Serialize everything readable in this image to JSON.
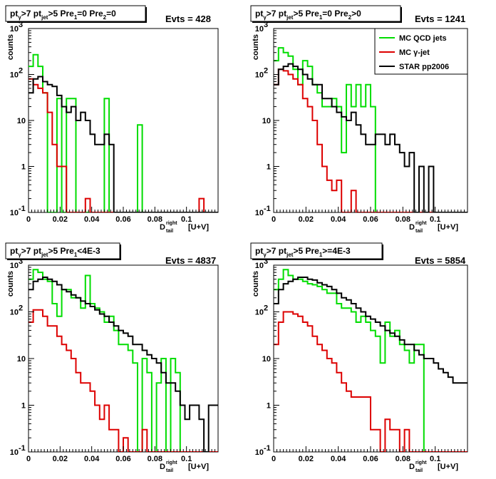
{
  "panels": [
    {
      "title": [
        "pt",
        "γ",
        ">7  pt",
        "jet",
        ">5 Pre",
        "1",
        "=0 Pre",
        "2",
        "=0"
      ],
      "evts": "Evts = 428",
      "legend": null
    },
    {
      "title": [
        "pt",
        "γ",
        ">7  pt",
        "jet",
        ">5 Pre",
        "1",
        "=0 Pre",
        "2",
        ">0"
      ],
      "evts": "Evts = 1241",
      "legend": [
        "MC QCD jets",
        "MC γ-jet",
        "STAR pp2006"
      ]
    },
    {
      "title": [
        "pt",
        "γ",
        ">7  pt",
        "jet",
        ">5 Pre",
        "1",
        "<4E-3"
      ],
      "evts": "Evts = 4837",
      "legend": null
    },
    {
      "title": [
        "pt",
        "γ",
        ">7  pt",
        "jet",
        ">5 Pre",
        "1",
        ">=4E-3"
      ],
      "evts": "Evts = 5854",
      "legend": null
    }
  ],
  "colors": {
    "qcd": "#00dd00",
    "gamma": "#dd0000",
    "star": "#000000"
  },
  "chart_data": [
    {
      "type": "line",
      "xlabel": "D^right_tail  [U+V]",
      "ylabel": "counts",
      "xlim": [
        0,
        0.12
      ],
      "ylim": [
        0.1,
        1000
      ],
      "log_y": true,
      "x_ticks": [
        "0",
        "0.02",
        "0.04",
        "0.06",
        "0.08",
        "0.1"
      ],
      "y_ticks": [
        "10^-1",
        "1",
        "10",
        "10^2",
        "10^3"
      ],
      "bin_width": 0.003,
      "series": [
        {
          "name": "MC QCD jets",
          "values": [
            150,
            270,
            150,
            40,
            0.1,
            0.1,
            30,
            0.1,
            30,
            30,
            0.1,
            0.1,
            0.1,
            0.1,
            0.1,
            0.1,
            30,
            0.1,
            0.1,
            0.1,
            0.1,
            0.1,
            0.1,
            8,
            0.1,
            0.1,
            0.1,
            0.1,
            0.1,
            0.1,
            0.1,
            0.1,
            0.1,
            0.1,
            0.1,
            0.1,
            0.1,
            0.1,
            0.1,
            0.1
          ]
        },
        {
          "name": "MC γ-jet",
          "values": [
            80,
            60,
            50,
            40,
            15,
            3,
            1,
            1,
            0.1,
            0.1,
            0.1,
            0.1,
            0.2,
            0.1,
            0.1,
            0.1,
            0.1,
            0.1,
            0.1,
            0.1,
            0.1,
            0.1,
            0.1,
            0.1,
            0.1,
            0.1,
            0.1,
            0.1,
            0.1,
            0.1,
            0.1,
            0.1,
            0.1,
            0.1,
            0.1,
            0.1,
            0.2,
            0.1,
            0.1,
            0.1
          ]
        },
        {
          "name": "STAR pp2006",
          "values": [
            40,
            80,
            90,
            70,
            60,
            55,
            35,
            20,
            15,
            20,
            10,
            15,
            10,
            5,
            3,
            3,
            5,
            3,
            0.1,
            0.1,
            0.1,
            0.1,
            0.1,
            0.1,
            0.1,
            0.1,
            0.1,
            0.1,
            0.1,
            0.1,
            0.1,
            0.1,
            0.1,
            0.1,
            0.1,
            0.1,
            0.1,
            0.1,
            0.1,
            0.1
          ]
        }
      ]
    },
    {
      "type": "line",
      "xlabel": "D^right_tail  [U+V]",
      "ylabel": "counts",
      "xlim": [
        0,
        0.12
      ],
      "ylim": [
        0.1,
        1000
      ],
      "log_y": true,
      "x_ticks": [
        "0",
        "0.02",
        "0.04",
        "0.06",
        "0.08",
        "0.1"
      ],
      "y_ticks": [
        "10^-1",
        "1",
        "10",
        "10^2",
        "10^3"
      ],
      "bin_width": 0.003,
      "series": [
        {
          "name": "MC QCD jets",
          "values": [
            200,
            380,
            300,
            250,
            130,
            60,
            200,
            150,
            60,
            40,
            20,
            20,
            30,
            20,
            2,
            60,
            20,
            60,
            20,
            60,
            20,
            0.1,
            0.1,
            0.1,
            0.1,
            0.1,
            0.1,
            0.1,
            0.1,
            0.1,
            0.1,
            0.1,
            0.1,
            0.1,
            0.1,
            0.1,
            0.1,
            0.1,
            0.1,
            0.1
          ]
        },
        {
          "name": "MC γ-jet",
          "values": [
            60,
            130,
            120,
            100,
            80,
            60,
            30,
            20,
            10,
            3,
            1,
            0.5,
            0.3,
            0.5,
            0.1,
            0.1,
            0.3,
            0.1,
            0.1,
            0.1,
            0.1,
            0.1,
            0.1,
            0.1,
            0.1,
            0.1,
            0.1,
            0.1,
            0.1,
            0.1,
            0.1,
            0.1,
            0.1,
            0.1,
            0.1,
            0.1,
            0.1,
            0.1,
            0.1,
            0.1
          ]
        },
        {
          "name": "STAR pp2006",
          "values": [
            60,
            130,
            150,
            170,
            150,
            130,
            100,
            80,
            60,
            60,
            30,
            30,
            20,
            15,
            12,
            10,
            15,
            8,
            5,
            3,
            3,
            5,
            5,
            3,
            5,
            3,
            2,
            1,
            2,
            0.1,
            1,
            0.1,
            1,
            0.1,
            0.1,
            0.1,
            0.1,
            0.1,
            0.1,
            0.1
          ]
        }
      ]
    },
    {
      "type": "line",
      "xlabel": "D^right_tail  [U+V]",
      "ylabel": "counts",
      "xlim": [
        0,
        0.12
      ],
      "ylim": [
        0.1,
        1000
      ],
      "log_y": true,
      "x_ticks": [
        "0",
        "0.02",
        "0.04",
        "0.06",
        "0.08",
        "0.1"
      ],
      "y_ticks": [
        "10^-1",
        "1",
        "10",
        "10^2",
        "10^3"
      ],
      "bin_width": 0.003,
      "series": [
        {
          "name": "MC QCD jets",
          "values": [
            500,
            800,
            700,
            500,
            450,
            150,
            80,
            300,
            300,
            200,
            200,
            120,
            600,
            150,
            120,
            100,
            60,
            80,
            40,
            20,
            20,
            15,
            8,
            0.1,
            10,
            5,
            0.1,
            3,
            10,
            0.1,
            10,
            5,
            0.1,
            0.1,
            0.1,
            0.1,
            0.1,
            0.1,
            0.1,
            0.1
          ]
        },
        {
          "name": "MC γ-jet",
          "values": [
            60,
            110,
            110,
            80,
            50,
            50,
            30,
            20,
            15,
            10,
            5,
            3,
            3,
            2,
            1,
            0.5,
            1,
            0.3,
            0.3,
            0.1,
            0.2,
            0.1,
            0.1,
            0.1,
            0.3,
            0.1,
            0.1,
            0.1,
            0.1,
            0.1,
            0.1,
            0.1,
            0.1,
            0.1,
            0.1,
            0.1,
            0.1,
            0.1,
            0.1,
            0.1
          ]
        },
        {
          "name": "STAR pp2006",
          "values": [
            300,
            450,
            500,
            550,
            500,
            450,
            380,
            300,
            270,
            230,
            200,
            170,
            150,
            130,
            110,
            90,
            80,
            60,
            50,
            40,
            35,
            30,
            20,
            20,
            15,
            12,
            10,
            8,
            5,
            3,
            3,
            2,
            1,
            0.5,
            1,
            1,
            0.5,
            0.1,
            1,
            1
          ]
        }
      ]
    },
    {
      "type": "line",
      "xlabel": "D^right_tail  [U+V]",
      "ylabel": "counts",
      "xlim": [
        0,
        0.12
      ],
      "ylim": [
        0.1,
        1000
      ],
      "log_y": true,
      "x_ticks": [
        "0",
        "0.02",
        "0.04",
        "0.06",
        "0.08",
        "0.1"
      ],
      "y_ticks": [
        "10^-1",
        "1",
        "10",
        "10^2",
        "10^3"
      ],
      "bin_width": 0.003,
      "series": [
        {
          "name": "MC QCD jets",
          "values": [
            300,
            500,
            800,
            600,
            500,
            500,
            450,
            400,
            380,
            350,
            300,
            250,
            250,
            150,
            120,
            120,
            100,
            60,
            80,
            60,
            40,
            30,
            8,
            60,
            30,
            40,
            20,
            15,
            8,
            20,
            20,
            0.1,
            0.1,
            0.1,
            0.1,
            0.1,
            0.1,
            0.1,
            0.1,
            0.1
          ]
        },
        {
          "name": "MC γ-jet",
          "values": [
            20,
            60,
            100,
            100,
            90,
            80,
            60,
            50,
            30,
            20,
            15,
            10,
            8,
            5,
            3,
            2,
            1.5,
            1.5,
            1.5,
            1.5,
            0.3,
            0.3,
            0.1,
            0.5,
            0.3,
            0.3,
            0.1,
            0.3,
            0.1,
            0.1,
            0.1,
            0.1,
            0.1,
            0.1,
            0.1,
            0.1,
            0.1,
            0.1,
            0.1,
            0.1
          ]
        },
        {
          "name": "STAR pp2006",
          "values": [
            150,
            300,
            400,
            450,
            500,
            550,
            550,
            500,
            480,
            420,
            380,
            350,
            300,
            250,
            200,
            180,
            150,
            120,
            100,
            80,
            70,
            60,
            50,
            40,
            35,
            30,
            25,
            20,
            20,
            15,
            12,
            10,
            10,
            8,
            6,
            5,
            4,
            3,
            3,
            3
          ]
        }
      ]
    }
  ]
}
